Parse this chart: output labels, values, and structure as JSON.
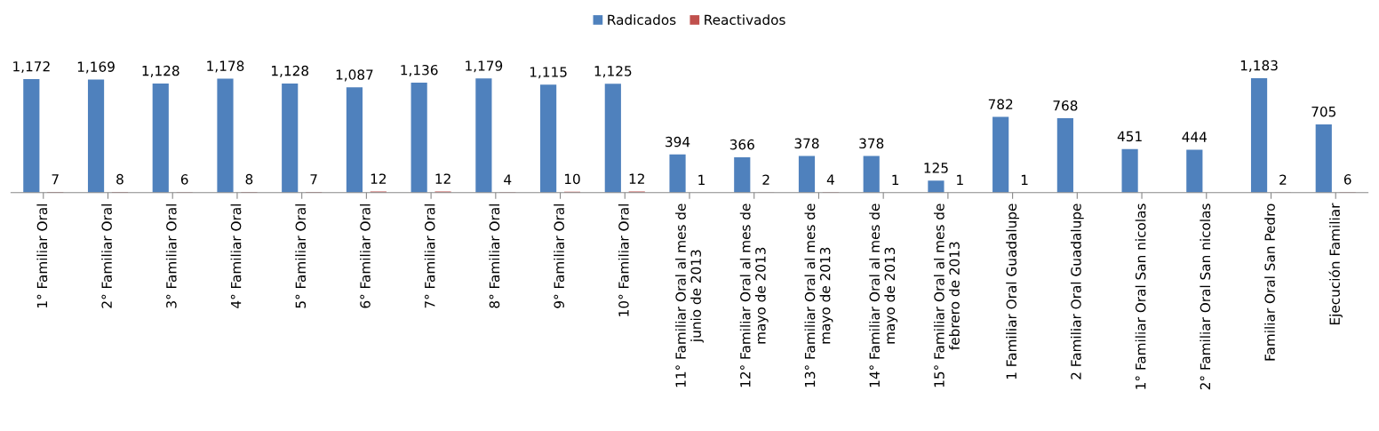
{
  "chart_data": {
    "type": "bar",
    "data_labels": true,
    "legend": "top",
    "grid": false,
    "categories": [
      "1° Familiar Oral",
      "2° Familiar Oral",
      "3° Familiar Oral",
      "4° Familiar Oral",
      "5° Familiar Oral",
      "6° Familiar Oral",
      "7° Familiar Oral",
      "8° Familiar Oral",
      "9° Familiar Oral",
      "10° Familiar Oral",
      "11° Familiar Oral al mes de\njunio de 2013",
      "12° Familiar Oral al mes de\nmayo de 2013",
      "13° Familiar Oral al mes de\nmayo de 2013",
      "14° Familiar Oral al mes de\nmayo de 2013",
      "15° Familiar Oral al mes de\nfebrero de 2013",
      "1 Familiar Oral Guadalupe",
      "2 Familiar Oral Guadalupe",
      "1° Familiar Oral San nicolas",
      "2° Familiar Oral San nicolas",
      "Familiar Oral San Pedro",
      "Ejecución Familiar"
    ],
    "series": [
      {
        "name": "Radicados",
        "color": "#4f81bd",
        "values": [
          1172,
          1169,
          1128,
          1178,
          1128,
          1087,
          1136,
          1179,
          1115,
          1125,
          394,
          366,
          378,
          378,
          125,
          782,
          768,
          451,
          444,
          1183,
          705
        ],
        "value_labels": [
          "1,172",
          "1,169",
          "1,128",
          "1,178",
          "1,128",
          "1,087",
          "1,136",
          "1,179",
          "1,115",
          "1,125",
          "394",
          "366",
          "378",
          "378",
          "125",
          "782",
          "768",
          "451",
          "444",
          "1,183",
          "705"
        ]
      },
      {
        "name": "Reactivados",
        "color": "#c0504d",
        "values": [
          7,
          8,
          6,
          8,
          7,
          12,
          12,
          4,
          10,
          12,
          1,
          2,
          4,
          1,
          1,
          1,
          null,
          null,
          null,
          2,
          6
        ]
      }
    ]
  }
}
